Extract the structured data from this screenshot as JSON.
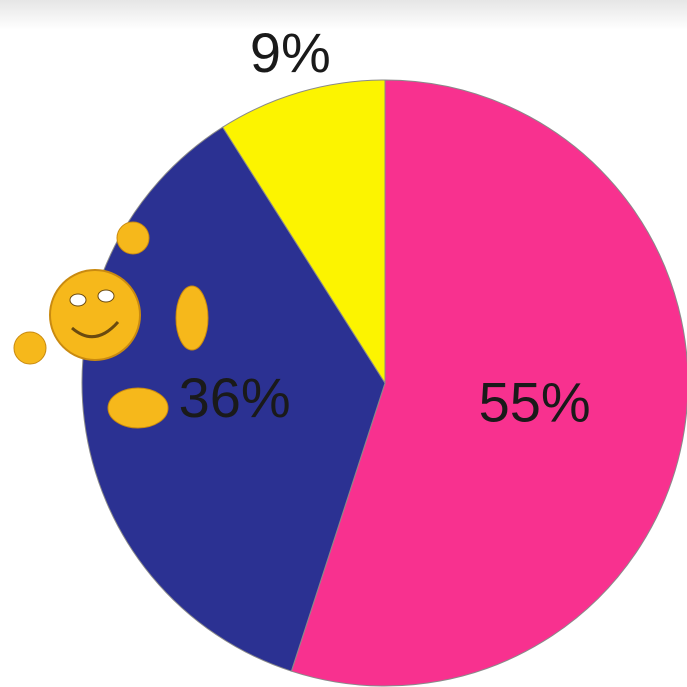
{
  "chart_data": {
    "type": "pie",
    "values": [
      55,
      36,
      9
    ],
    "value_labels": [
      "55%",
      "36%",
      "9%"
    ],
    "colors": [
      "#f8318f",
      "#2b3192",
      "#fcf400"
    ]
  }
}
